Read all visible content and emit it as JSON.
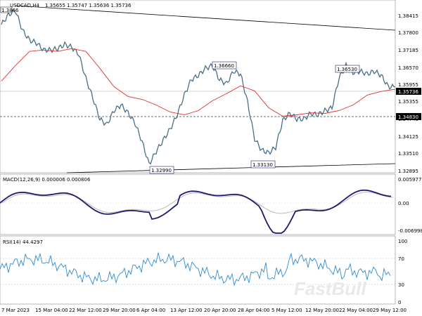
{
  "header": {
    "symbol_label": "USDCAD,H4",
    "quote": "1.35655 1.35747 1.35636 1.35736",
    "corner_label": "1.3866"
  },
  "main_panel": {
    "price_ticks": [
      "1.38415",
      "1.37800",
      "1.37185",
      "1.36570",
      "1.35955",
      "1.35355",
      "1.34740",
      "1.34125",
      "1.33510",
      "1.32895"
    ],
    "current_price_box": "1.35736",
    "support_box": "1.34830",
    "annotations": [
      "1.36660",
      "1.36530",
      "1.32990",
      "1.33130"
    ],
    "colors": {
      "price": "#4a6e85",
      "ma": "#e03030",
      "trend": "#000000"
    }
  },
  "macd_panel": {
    "title": "MACD(12,26,9) 0.000006 0.000806",
    "ticks": [
      "0.005977",
      "0.00",
      "-0.006998"
    ],
    "colors": {
      "macd": "#1b1b6e",
      "signal": "#b9b9b9"
    }
  },
  "rsi_panel": {
    "title": "RSI(14) 44.4297",
    "ticks": [
      "100",
      "70",
      "30",
      "0"
    ],
    "colors": {
      "rsi": "#2f8ad1"
    }
  },
  "time_axis": {
    "ticks": [
      "7 Mar 2023",
      "15 Mar 04:00",
      "22 Mar 12:00",
      "29 Mar 20:00",
      "6 Apr 04:00",
      "13 Apr 12:00",
      "20 Apr 20:00",
      "28 Apr 04:00",
      "5 May 12:00",
      "12 May 20:00",
      "22 May 04:00",
      "29 May 12:00"
    ]
  },
  "watermark": "FastBull",
  "chart_data": {
    "type": "line",
    "series": [
      {
        "x": [
          0,
          10,
          20,
          30,
          40,
          50,
          60,
          70,
          80,
          90,
          100,
          110,
          120,
          130,
          140,
          150,
          160,
          170,
          180,
          190,
          200,
          210,
          220,
          230,
          240,
          250,
          260,
          270,
          280,
          290,
          300,
          310,
          320,
          330,
          340,
          350,
          360,
          370,
          380,
          390,
          400,
          410,
          420,
          430,
          440,
          450,
          460,
          470,
          480,
          490,
          500,
          510,
          520,
          530,
          540,
          550,
          560
        ],
        "values": [
          1.3795,
          1.383,
          1.3845,
          1.3775,
          1.374,
          1.373,
          1.3705,
          1.3705,
          1.371,
          1.3725,
          1.3715,
          1.369,
          1.3605,
          1.3535,
          1.346,
          1.344,
          1.349,
          1.351,
          1.3482,
          1.3445,
          1.338,
          1.33,
          1.3345,
          1.3385,
          1.3425,
          1.3475,
          1.3545,
          1.36,
          1.3615,
          1.364,
          1.365,
          1.36,
          1.3585,
          1.363,
          1.362,
          1.352,
          1.339,
          1.335,
          1.334,
          1.336,
          1.3455,
          1.348,
          1.346,
          1.346,
          1.348,
          1.3475,
          1.349,
          1.35,
          1.3605,
          1.365,
          1.3625,
          1.363,
          1.362,
          1.363,
          1.3615,
          1.3575,
          1.3574
        ]
      },
      {
        "x": [
          0,
          20,
          40,
          60,
          80,
          100,
          120,
          140,
          160,
          180,
          200,
          220,
          240,
          260,
          280,
          300,
          320,
          340,
          360,
          380,
          400,
          420,
          440,
          460,
          480,
          500,
          520,
          540,
          560
        ],
        "values": [
          1.3595,
          1.365,
          1.37,
          1.3705,
          1.37,
          1.371,
          1.37,
          1.364,
          1.3575,
          1.354,
          1.353,
          1.351,
          1.3485,
          1.3475,
          1.349,
          1.3525,
          1.355,
          1.3578,
          1.356,
          1.35,
          1.347,
          1.3475,
          1.3482,
          1.348,
          1.349,
          1.351,
          1.3545,
          1.3558,
          1.3566
        ]
      }
    ],
    "ylim": [
      1.3277,
      1.387
    ],
    "grid": false
  }
}
